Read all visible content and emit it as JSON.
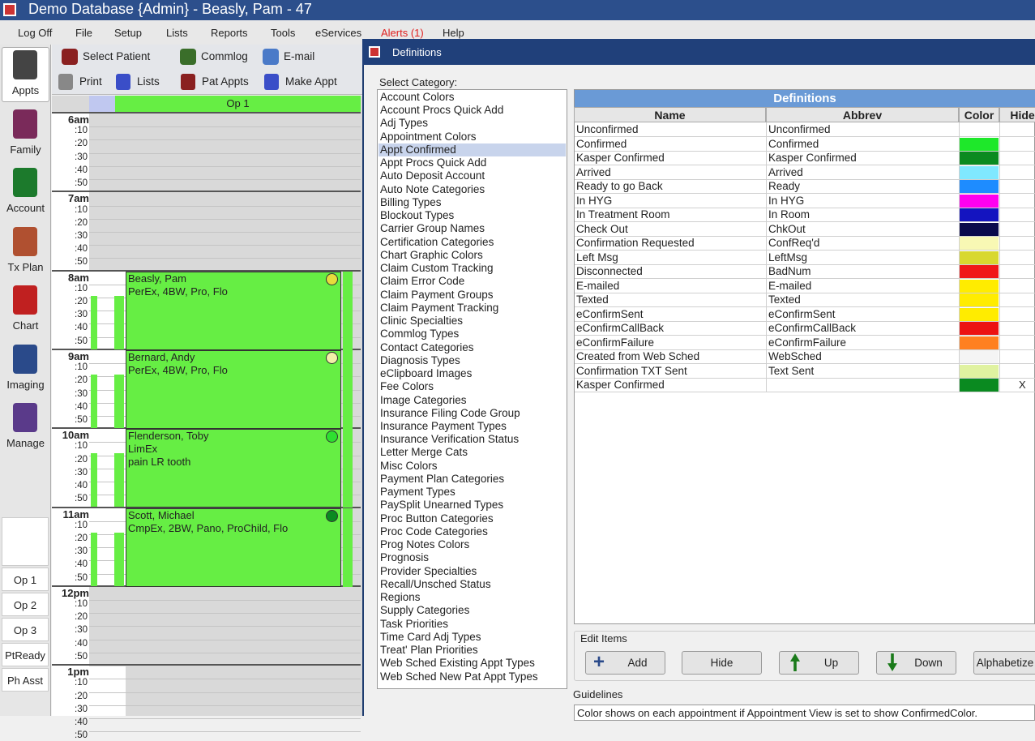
{
  "window": {
    "title": "Demo Database {Admin} - Beasly, Pam - 47",
    "menu": [
      "Log Off",
      "File",
      "Setup",
      "Lists",
      "Reports",
      "Tools",
      "eServices",
      "Alerts (1)",
      "Help"
    ],
    "toolbar1": [
      "Select Patient",
      "Commlog",
      "E-mail"
    ],
    "toolbar2": [
      "Print",
      "Lists",
      "Pat Appts",
      "Make Appt"
    ],
    "modules": [
      "Appts",
      "Family",
      "Account",
      "Tx Plan",
      "Chart",
      "Imaging",
      "Manage"
    ],
    "views": [
      "Op 1",
      "Op 2",
      "Op 3",
      "PtReady",
      "Ph Asst"
    ]
  },
  "schedule": {
    "operatory": "Op 1",
    "hours": [
      "6am",
      "7am",
      "8am",
      "9am",
      "10am",
      "11am",
      "12pm",
      "1pm"
    ],
    "minutes": [
      ":10",
      ":20",
      ":30",
      ":40",
      ":50"
    ],
    "appointments": [
      {
        "lines": [
          "Beasly, Pam",
          "PerEx, 4BW, Pro, Flo"
        ],
        "dot": "#e6dc3c",
        "hour": 2
      },
      {
        "lines": [
          "Bernard, Andy",
          "PerEx, 4BW, Pro, Flo"
        ],
        "dot": "#f2f0a8",
        "hour": 3
      },
      {
        "lines": [
          "Flenderson, Toby",
          "LimEx",
          "pain LR tooth"
        ],
        "dot": "#2ee030",
        "hour": 4
      },
      {
        "lines": [
          "Scott, Michael",
          "CmpEx, 2BW, Pano, ProChild, Flo"
        ],
        "dot": "#0b8a20",
        "hour": 5
      }
    ]
  },
  "dialog": {
    "title": "Definitions",
    "select_label": "Select Category:",
    "categories": [
      "Account Colors",
      "Account Procs Quick Add",
      "Adj Types",
      "Appointment Colors",
      "Appt Confirmed",
      "Appt Procs Quick Add",
      "Auto Deposit Account",
      "Auto Note Categories",
      "Billing Types",
      "Blockout Types",
      "Carrier Group Names",
      "Certification Categories",
      "Chart Graphic Colors",
      "Claim Custom Tracking",
      "Claim Error Code",
      "Claim Payment Groups",
      "Claim Payment Tracking",
      "Clinic Specialties",
      "Commlog Types",
      "Contact Categories",
      "Diagnosis Types",
      "eClipboard Images",
      "Fee Colors",
      "Image Categories",
      "Insurance Filing Code Group",
      "Insurance Payment Types",
      "Insurance Verification Status",
      "Letter Merge Cats",
      "Misc Colors",
      "Payment Plan Categories",
      "Payment Types",
      "PaySplit Unearned Types",
      "Proc Button Categories",
      "Proc Code Categories",
      "Prog Notes Colors",
      "Prognosis",
      "Provider Specialties",
      "Recall/Unsched Status",
      "Regions",
      "Supply Categories",
      "Task Priorities",
      "Time Card Adj Types",
      "Treat' Plan Priorities",
      "Web Sched Existing Appt Types",
      "Web Sched New Pat Appt Types"
    ],
    "selected_category": "Appt Confirmed",
    "grid_title": "Definitions",
    "columns": [
      "Name",
      "Abbrev",
      "Color",
      "Hide"
    ],
    "rows": [
      {
        "name": "Unconfirmed",
        "abbrev": "Unconfirmed",
        "color": "#ffffff"
      },
      {
        "name": "Confirmed",
        "abbrev": "Confirmed",
        "color": "#1ee82a"
      },
      {
        "name": "Kasper Confirmed",
        "abbrev": "Kasper Confirmed",
        "color": "#0b8a20"
      },
      {
        "name": "Arrived",
        "abbrev": "Arrived",
        "color": "#80e8ff"
      },
      {
        "name": "Ready to go Back",
        "abbrev": "Ready",
        "color": "#1e8cff"
      },
      {
        "name": "In HYG",
        "abbrev": "In HYG",
        "color": "#ff00f0"
      },
      {
        "name": "In Treatment Room",
        "abbrev": "In Room",
        "color": "#1414c0"
      },
      {
        "name": "Check Out",
        "abbrev": "ChkOut",
        "color": "#0a0a4c"
      },
      {
        "name": "Confirmation Requested",
        "abbrev": "ConfReq'd",
        "color": "#f8f8b4"
      },
      {
        "name": "Left Msg",
        "abbrev": "LeftMsg",
        "color": "#d8d830"
      },
      {
        "name": "Disconnected",
        "abbrev": "BadNum",
        "color": "#f01818"
      },
      {
        "name": "E-mailed",
        "abbrev": "E-mailed",
        "color": "#ffec00"
      },
      {
        "name": "Texted",
        "abbrev": "Texted",
        "color": "#ffec00"
      },
      {
        "name": "eConfirmSent",
        "abbrev": "eConfirmSent",
        "color": "#ffec00"
      },
      {
        "name": "eConfirmCallBack",
        "abbrev": "eConfirmCallBack",
        "color": "#ec1212"
      },
      {
        "name": "eConfirmFailure",
        "abbrev": "eConfirmFailure",
        "color": "#ff8020"
      },
      {
        "name": "Created from Web Sched",
        "abbrev": "WebSched",
        "color": "#f4f4f4"
      },
      {
        "name": "Confirmation TXT Sent",
        "abbrev": "Text Sent",
        "color": "#e0f2a0"
      },
      {
        "name": "Kasper Confirmed",
        "color": "#0a8a20",
        "hide": "X"
      }
    ],
    "edit_label": "Edit Items",
    "buttons": [
      "Add",
      "Hide",
      "Up",
      "Down",
      "Alphabetize"
    ],
    "guidelines_label": "Guidelines",
    "guidelines": "Color shows on each appointment if Appointment View is set to show ConfirmedColor."
  }
}
